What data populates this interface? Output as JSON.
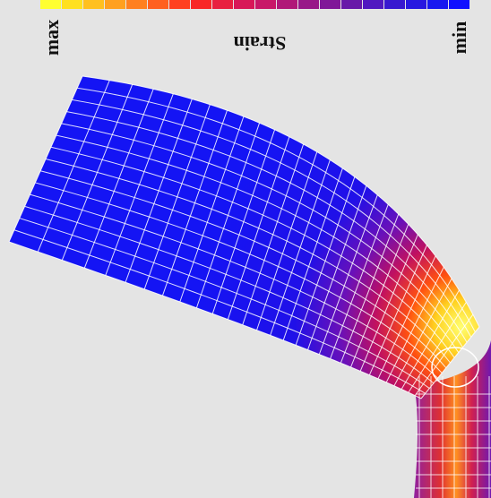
{
  "colorbar": {
    "max_label": "max",
    "title": "Strain",
    "min_label": "min"
  }
}
